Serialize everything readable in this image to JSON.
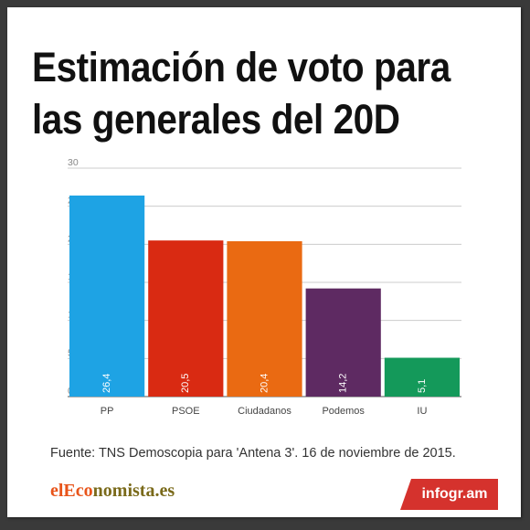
{
  "title_line1": "Estimación de voto para",
  "title_line2": "las generales del 20D",
  "source": "Fuente:  TNS Demoscopia para 'Antena 3'.  16 de noviembre de 2015.",
  "logo": {
    "part1": "elEco",
    "part2": "nomista.es"
  },
  "badge": "infogr.am",
  "chart_data": {
    "type": "bar",
    "categories": [
      "PP",
      "PSOE",
      "Ciudadanos",
      "Podemos",
      "IU"
    ],
    "values": [
      26.4,
      20.5,
      20.4,
      14.2,
      5.1
    ],
    "value_labels": [
      "26,4",
      "20,5",
      "20,4",
      "14,2",
      "5,1"
    ],
    "colors": [
      "#1ea3e4",
      "#d92a12",
      "#ea6a12",
      "#5e2a62",
      "#14995a"
    ],
    "ylim": [
      0,
      30
    ],
    "yticks": [
      "0",
      "5",
      "10",
      "15",
      "20",
      "25",
      "30"
    ],
    "grid": true,
    "title": "",
    "xlabel": "",
    "ylabel": ""
  }
}
